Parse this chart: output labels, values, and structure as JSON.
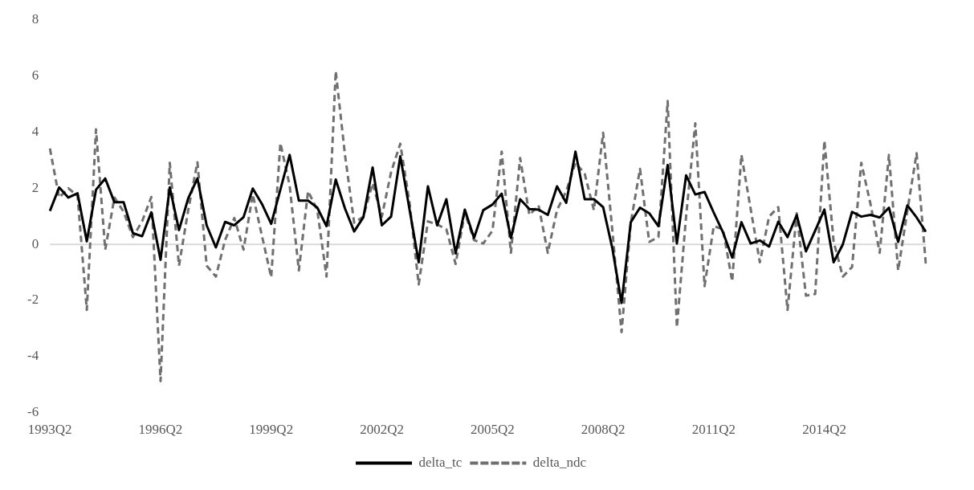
{
  "chart_data": {
    "type": "line",
    "categories": [
      "1993Q2",
      null,
      null,
      null,
      null,
      null,
      null,
      null,
      null,
      null,
      null,
      null,
      "1996Q2",
      null,
      null,
      null,
      null,
      null,
      null,
      null,
      null,
      null,
      null,
      null,
      "1999Q2",
      null,
      null,
      null,
      null,
      null,
      null,
      null,
      null,
      null,
      null,
      null,
      "2002Q2",
      null,
      null,
      null,
      null,
      null,
      null,
      null,
      null,
      null,
      null,
      null,
      "2005Q2",
      null,
      null,
      null,
      null,
      null,
      null,
      null,
      null,
      null,
      null,
      null,
      "2008Q2",
      null,
      null,
      null,
      null,
      null,
      null,
      null,
      null,
      null,
      null,
      null,
      "2011Q2",
      null,
      null,
      null,
      null,
      null,
      null,
      null,
      null,
      null,
      null,
      null,
      "2014Q2",
      null,
      null,
      null,
      null,
      null,
      null,
      null,
      null,
      null,
      null,
      null
    ],
    "series": [
      {
        "name": "delta_tc",
        "color": "#000000",
        "line_style": "solid",
        "values": [
          1.19,
          2.03,
          1.67,
          1.82,
          0.11,
          1.95,
          2.35,
          1.5,
          1.5,
          0.4,
          0.29,
          1.14,
          -0.55,
          2.03,
          0.51,
          1.64,
          2.35,
          0.68,
          -0.11,
          0.8,
          0.68,
          0.97,
          1.99,
          1.44,
          0.73,
          1.96,
          3.19,
          1.56,
          1.56,
          1.31,
          0.65,
          2.31,
          1.28,
          0.46,
          0.97,
          2.74,
          0.68,
          0.99,
          3.14,
          1.25,
          -0.64,
          2.07,
          0.68,
          1.61,
          -0.32,
          1.24,
          0.23,
          1.22,
          1.42,
          1.81,
          0.23,
          1.61,
          1.26,
          1.24,
          1.05,
          2.07,
          1.48,
          3.31,
          1.61,
          1.61,
          1.33,
          -0.14,
          -2.09,
          0.79,
          1.31,
          1.11,
          0.65,
          2.83,
          0.03,
          2.46,
          1.78,
          1.87,
          1.13,
          0.43,
          -0.47,
          0.79,
          0.03,
          0.14,
          -0.08,
          0.81,
          0.26,
          1.04,
          -0.25,
          0.49,
          1.24,
          -0.64,
          0,
          1.16,
          0.99,
          1.05,
          0.96,
          1.31,
          0.09,
          1.39,
          0.96,
          0.45
        ]
      },
      {
        "name": "delta_ndc",
        "color": "#707070",
        "line_style": "dashed",
        "values": [
          3.42,
          1.67,
          2.0,
          1.73,
          -2.34,
          4.1,
          -0.19,
          1.67,
          1.16,
          0.26,
          0.82,
          1.69,
          -4.88,
          2.91,
          -0.76,
          1.22,
          2.93,
          -0.76,
          -1.15,
          0.15,
          0.94,
          -0.19,
          1.78,
          0.3,
          -1.17,
          3.61,
          2.1,
          -0.93,
          1.9,
          1.22,
          -1.15,
          6.18,
          3.2,
          0.77,
          0.99,
          2.18,
          0.99,
          2.57,
          3.59,
          1.5,
          -1.43,
          0.82,
          0.71,
          0.54,
          -0.7,
          1.13,
          0.15,
          0.03,
          0.49,
          3.31,
          -0.3,
          3.08,
          1.05,
          1.39,
          -0.3,
          1.22,
          1.9,
          2.91,
          2.52,
          1.22,
          3.98,
          0.5,
          -3.13,
          0.77,
          2.69,
          0.09,
          0.26,
          5.11,
          -2.96,
          1.0,
          4.32,
          -1.49,
          0.65,
          0.54,
          -1.32,
          3.19,
          1.27,
          -0.64,
          0.99,
          1.33,
          -2.34,
          1.11,
          -1.83,
          -1.77,
          3.7,
          0.1,
          -1.15,
          -0.81,
          2.91,
          1.44,
          -0.3,
          3.19,
          -0.93,
          1.2,
          3.25,
          -0.7
        ]
      }
    ],
    "ylim": [
      -6,
      8
    ],
    "yticks": [
      -6,
      -4,
      -2,
      0,
      2,
      4,
      6,
      8
    ],
    "ref_lines": [
      {
        "axis": "y",
        "value": 0,
        "color": "#d9d9d9"
      }
    ],
    "legend": "bottom",
    "marker": "none"
  }
}
